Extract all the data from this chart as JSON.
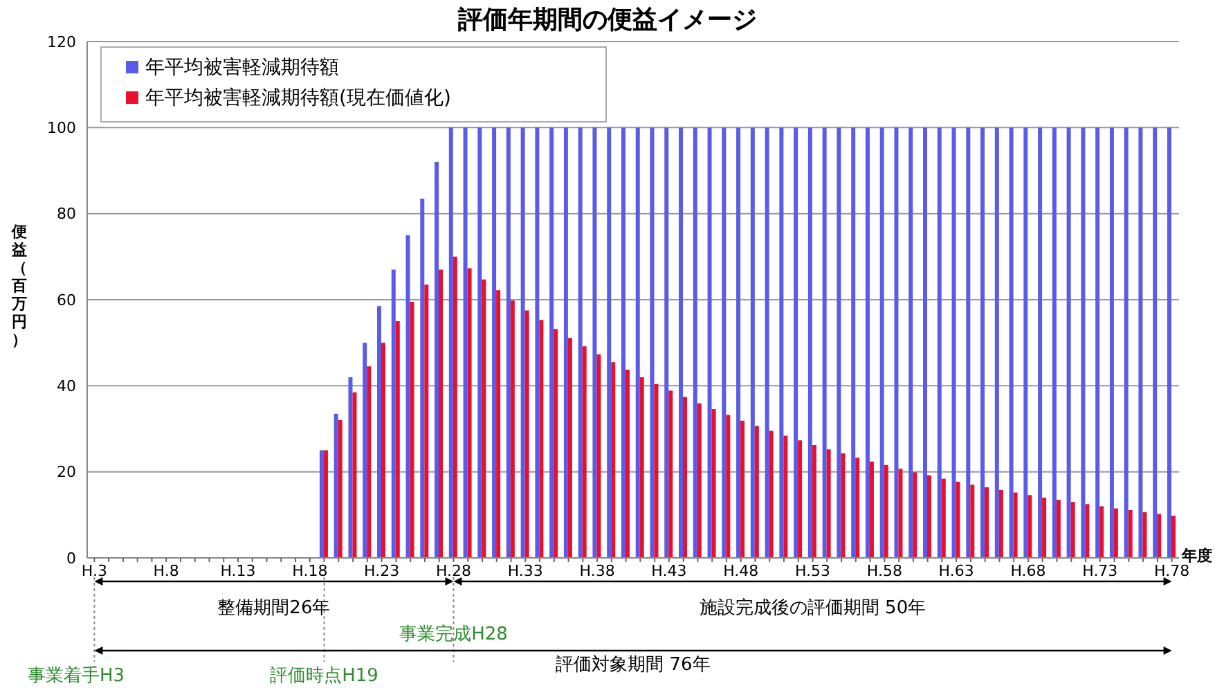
{
  "chart_data": {
    "type": "bar",
    "title": "評価年期間の便益イメージ",
    "ylabel": "便益（百万円）",
    "xlabel": "年度",
    "categories": [
      "H.3",
      null,
      null,
      null,
      null,
      "H.8",
      null,
      null,
      null,
      null,
      "H.13",
      null,
      null,
      null,
      null,
      "H.18",
      null,
      null,
      null,
      null,
      "H.23",
      null,
      null,
      null,
      null,
      "H.28",
      null,
      null,
      null,
      null,
      "H.33",
      null,
      null,
      null,
      null,
      "H.38",
      null,
      null,
      null,
      null,
      "H.43",
      null,
      null,
      null,
      null,
      "H.48",
      null,
      null,
      null,
      null,
      "H.53",
      null,
      null,
      null,
      null,
      "H.58",
      null,
      null,
      null,
      null,
      "H.63",
      null,
      null,
      null,
      null,
      "H.68",
      null,
      null,
      null,
      null,
      "H.73",
      null,
      null,
      null,
      null,
      "H.78"
    ],
    "series": [
      {
        "name": "年平均被害軽減期待額",
        "color": "#5b5bea",
        "values": [
          0,
          0,
          0,
          0,
          0,
          0,
          0,
          0,
          0,
          0,
          0,
          0,
          0,
          0,
          0,
          0,
          25,
          33.5,
          42,
          50,
          58.5,
          67,
          75,
          83.5,
          92,
          100,
          100,
          100,
          100,
          100,
          100,
          100,
          100,
          100,
          100,
          100,
          100,
          100,
          100,
          100,
          100,
          100,
          100,
          100,
          100,
          100,
          100,
          100,
          100,
          100,
          100,
          100,
          100,
          100,
          100,
          100,
          100,
          100,
          100,
          100,
          100,
          100,
          100,
          100,
          100,
          100,
          100,
          100,
          100,
          100,
          100,
          100,
          100,
          100,
          100,
          100
        ]
      },
      {
        "name": "年平均被害軽減期待額(現在価値化)",
        "color": "#e8102f",
        "values": [
          0,
          0,
          0,
          0,
          0,
          0,
          0,
          0,
          0,
          0,
          0,
          0,
          0,
          0,
          0,
          0,
          25,
          32,
          38.5,
          44.5,
          50,
          55,
          59.5,
          63.5,
          67,
          70,
          67.3,
          64.7,
          62.2,
          59.8,
          57.5,
          55.3,
          53.2,
          51.1,
          49.2,
          47.3,
          45.5,
          43.7,
          42,
          40.4,
          38.9,
          37.4,
          35.9,
          34.6,
          33.2,
          31.9,
          30.7,
          29.5,
          28.4,
          27.3,
          26.2,
          25.2,
          24.3,
          23.3,
          22.4,
          21.6,
          20.7,
          19.9,
          19.2,
          18.4,
          17.7,
          17,
          16.4,
          15.8,
          15.2,
          14.6,
          14,
          13.5,
          13,
          12.5,
          12,
          11.5,
          11.1,
          10.6,
          10.2,
          9.8
        ]
      }
    ],
    "ylim": [
      0,
      120
    ],
    "yticks": [
      0,
      20,
      40,
      60,
      80,
      100,
      120
    ],
    "grid": "y",
    "legend": "top left",
    "annotations": [
      "整備期間26年",
      "施設完成後の評価期間 50年",
      "評価対象期間 76年",
      "事業着手H3",
      "評価時点H19",
      "事業完成H28"
    ]
  }
}
